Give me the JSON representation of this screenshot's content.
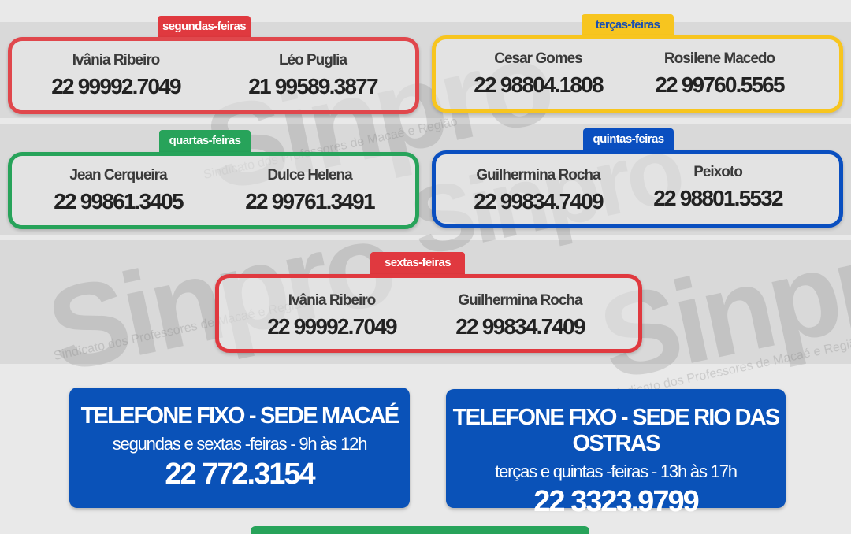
{
  "watermark": {
    "brand": "Sinpro",
    "city": "Macaé",
    "tagline": "Sindicato dos Professores de Macaé e Região"
  },
  "colors": {
    "red": "#e0393f",
    "yellow": "#f7c51f",
    "green": "#27a35a",
    "blue": "#0a4fc0"
  },
  "days": [
    {
      "label": "segundas-feiras",
      "people": [
        {
          "name": "Ivânia Ribeiro",
          "phone": "22 99992.7049"
        },
        {
          "name": "Léo Puglia",
          "phone": "21 99589.3877"
        }
      ]
    },
    {
      "label": "terças-feiras",
      "people": [
        {
          "name": "Cesar Gomes",
          "phone": "22 98804.1808"
        },
        {
          "name": "Rosilene Macedo",
          "phone": "22 99760.5565"
        }
      ]
    },
    {
      "label": "quartas-feiras",
      "people": [
        {
          "name": "Jean Cerqueira",
          "phone": "22 99861.3405"
        },
        {
          "name": "Dulce Helena",
          "phone": "22 99761.3491"
        }
      ]
    },
    {
      "label": "quintas-feiras",
      "people": [
        {
          "name": "Guilhermina Rocha",
          "phone": "22 99834.7409"
        },
        {
          "name": "Peixoto",
          "phone": "22 98801.5532"
        }
      ]
    },
    {
      "label": "sextas-feiras",
      "people": [
        {
          "name": "Ivânia Ribeiro",
          "phone": "22 99992.7049"
        },
        {
          "name": "Guilhermina Rocha",
          "phone": "22 99834.7409"
        }
      ]
    }
  ],
  "landlines": [
    {
      "title": "TELEFONE  FIXO - SEDE MACAÉ",
      "hours": "segundas e sextas -feiras - 9h às 12h",
      "phone": "22 772.3154"
    },
    {
      "title": "TELEFONE  FIXO - SEDE RIO DAS OSTRAS",
      "hours": "terças e quintas -feiras - 13h  às 17h",
      "phone": "22 3323.9799"
    }
  ]
}
